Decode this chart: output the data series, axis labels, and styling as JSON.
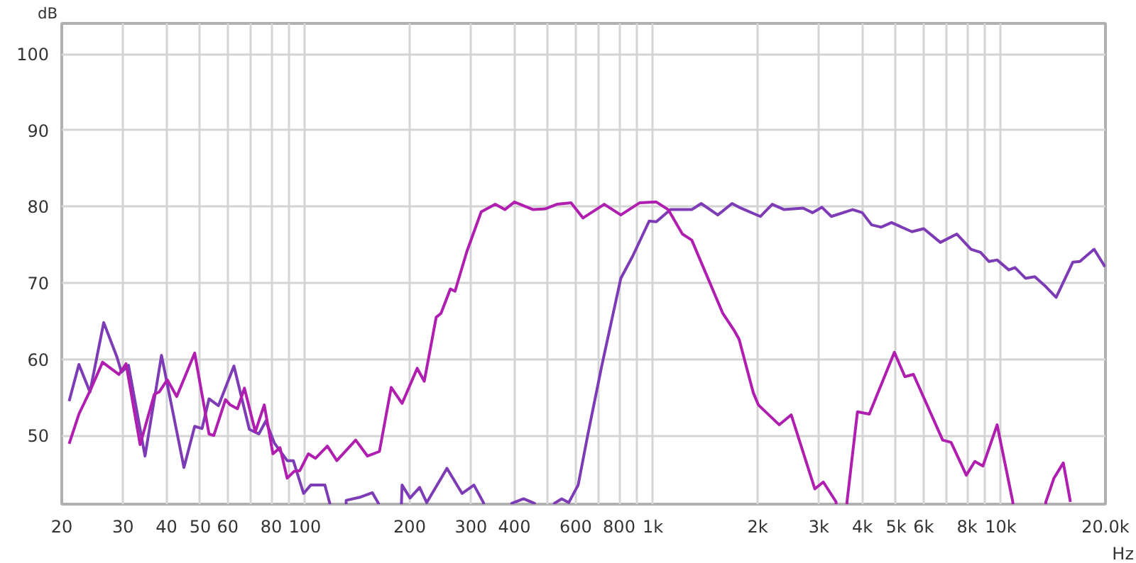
{
  "chart_data": {
    "type": "line",
    "ylabel": "dB",
    "xlabel": "Hz",
    "log": "x",
    "grid": true,
    "xlim": [
      20,
      20000
    ],
    "ylim": [
      41,
      104
    ],
    "xticks": [
      20,
      30,
      40,
      50,
      60,
      {
        "value": 70,
        "label": null
      },
      80,
      {
        "value": 90,
        "label": null
      },
      100,
      200,
      300,
      400,
      {
        "value": 500,
        "label": null
      },
      600,
      {
        "value": 700,
        "label": null
      },
      800,
      {
        "value": 900,
        "label": null
      },
      {
        "value": 1000,
        "label": "1k"
      },
      {
        "value": 2000,
        "label": "2k"
      },
      {
        "value": 3000,
        "label": "3k"
      },
      {
        "value": 4000,
        "label": "4k"
      },
      {
        "value": 5000,
        "label": "5k"
      },
      {
        "value": 6000,
        "label": "6k"
      },
      {
        "value": 7000,
        "label": null
      },
      {
        "value": 8000,
        "label": "8k"
      },
      {
        "value": 9000,
        "label": null
      },
      {
        "value": 10000,
        "label": "10k"
      },
      {
        "value": 20000,
        "label": "20.0k"
      }
    ],
    "yticks": [
      50,
      60,
      70,
      80,
      90,
      100
    ],
    "series": [
      {
        "color": "#7d3cb5",
        "x": [
          21.0,
          22.4,
          24.1,
          26.4,
          28.8,
          29.7,
          31.1,
          34.7,
          38.7,
          44.9,
          48.2,
          50.6,
          53.0,
          56.4,
          62.5,
          69.2,
          73.7,
          77.2,
          81.7,
          88.9,
          92.6,
          99.1,
          103.9,
          114.1,
          117.9,
          124,
          131.4,
          143.9,
          156.2,
          162.7,
          176,
          190.2,
          200.5,
          213.6,
          223.9,
          256,
          283,
          306,
          326,
          360,
          393,
          425,
          457,
          490,
          521,
          547,
          573,
          610,
          649,
          713,
          809,
          875,
          976,
          1023,
          1124,
          1294,
          1377,
          1537,
          1689,
          1770,
          2037,
          2204,
          2385,
          2702,
          2877,
          3062,
          3259,
          3754,
          3998,
          4254,
          4530,
          4853,
          5556,
          6006,
          6705,
          7478,
          8215,
          8748,
          9253,
          9764,
          10550,
          10990,
          11780,
          12530,
          13480,
          14430,
          16110,
          16890,
          18550,
          19940
        ],
        "values": [
          54.5,
          59.3,
          55.7,
          64.8,
          60.3,
          58.3,
          59.2,
          47.3,
          60.5,
          45.8,
          51.2,
          50.9,
          54.8,
          53.9,
          59.1,
          50.8,
          50.2,
          51.9,
          49.0,
          46.7,
          46.7,
          42.4,
          43.5,
          43.5,
          41.1,
          null,
          41.5,
          41.9,
          42.5,
          41.1,
          null,
          43.5,
          41.8,
          43.2,
          41.2,
          45.7,
          42.4,
          43.5,
          41.2,
          null,
          41.1,
          41.7,
          41.1,
          null,
          41.1,
          41.7,
          41.2,
          43.5,
          49.9,
          59.1,
          70.6,
          73.5,
          78.1,
          78.0,
          79.6,
          79.6,
          80.4,
          78.9,
          80.4,
          79.9,
          78.7,
          80.3,
          79.6,
          79.8,
          79.2,
          79.9,
          78.7,
          79.6,
          79.2,
          77.6,
          77.3,
          77.9,
          76.7,
          77.1,
          75.3,
          76.4,
          74.4,
          74.0,
          72.8,
          73.0,
          71.7,
          72.0,
          70.6,
          70.8,
          69.5,
          68.1,
          72.7,
          72.8,
          74.4,
          72.1
        ]
      },
      {
        "color": "#b01eb0",
        "x": [
          21.0,
          22.4,
          24.2,
          26.2,
          29.2,
          30.6,
          33.6,
          36.9,
          38.1,
          40.2,
          42.8,
          48.2,
          53.0,
          54.7,
          59.1,
          61.0,
          64.0,
          67.0,
          72.0,
          76.4,
          80.9,
          84.8,
          88.9,
          93.1,
          96.7,
          102.3,
          107.2,
          116.0,
          123.5,
          139.9,
          151.3,
          163.7,
          177.0,
          190.2,
          210.2,
          220.3,
          238.4,
          246,
          261.8,
          270,
          292,
          321,
          352.5,
          375.5,
          400,
          453,
          490,
          530,
          582,
          630,
          725,
          809,
          917,
          1023,
          1107,
          1216,
          1294,
          1589,
          1716,
          1770,
          1944,
          2011,
          2309,
          2499,
          2921,
          3090,
          3362,
          3480,
          3615,
          3874,
          4189,
          4946,
          5302,
          5611,
          6809,
          7200,
          7962,
          8424,
          8889,
          9764,
          10830,
          12000,
          13480,
          14220,
          15130,
          15860
        ],
        "values": [
          48.9,
          52.8,
          56.0,
          59.6,
          58.0,
          59.4,
          48.8,
          55.4,
          55.7,
          57.3,
          55.1,
          60.8,
          50.2,
          50.0,
          54.7,
          54.0,
          53.5,
          56.2,
          50.5,
          54.0,
          47.6,
          48.4,
          44.4,
          45.3,
          45.4,
          47.6,
          47.0,
          48.6,
          46.7,
          49.4,
          47.3,
          47.9,
          56.3,
          54.2,
          58.8,
          57.1,
          65.5,
          66.0,
          69.2,
          68.9,
          74.1,
          79.3,
          80.3,
          79.6,
          80.6,
          79.6,
          79.7,
          80.3,
          80.5,
          78.5,
          80.3,
          78.9,
          80.5,
          80.6,
          79.6,
          76.4,
          75.6,
          66.0,
          63.7,
          62.6,
          55.6,
          54.0,
          51.4,
          52.7,
          43.0,
          43.9,
          41.3,
          null,
          41.3,
          53.1,
          52.8,
          60.9,
          57.7,
          58.0,
          49.4,
          49.1,
          44.8,
          46.6,
          46.0,
          51.4,
          41.3,
          null,
          41.3,
          44.4,
          46.4,
          41.3
        ]
      }
    ]
  }
}
